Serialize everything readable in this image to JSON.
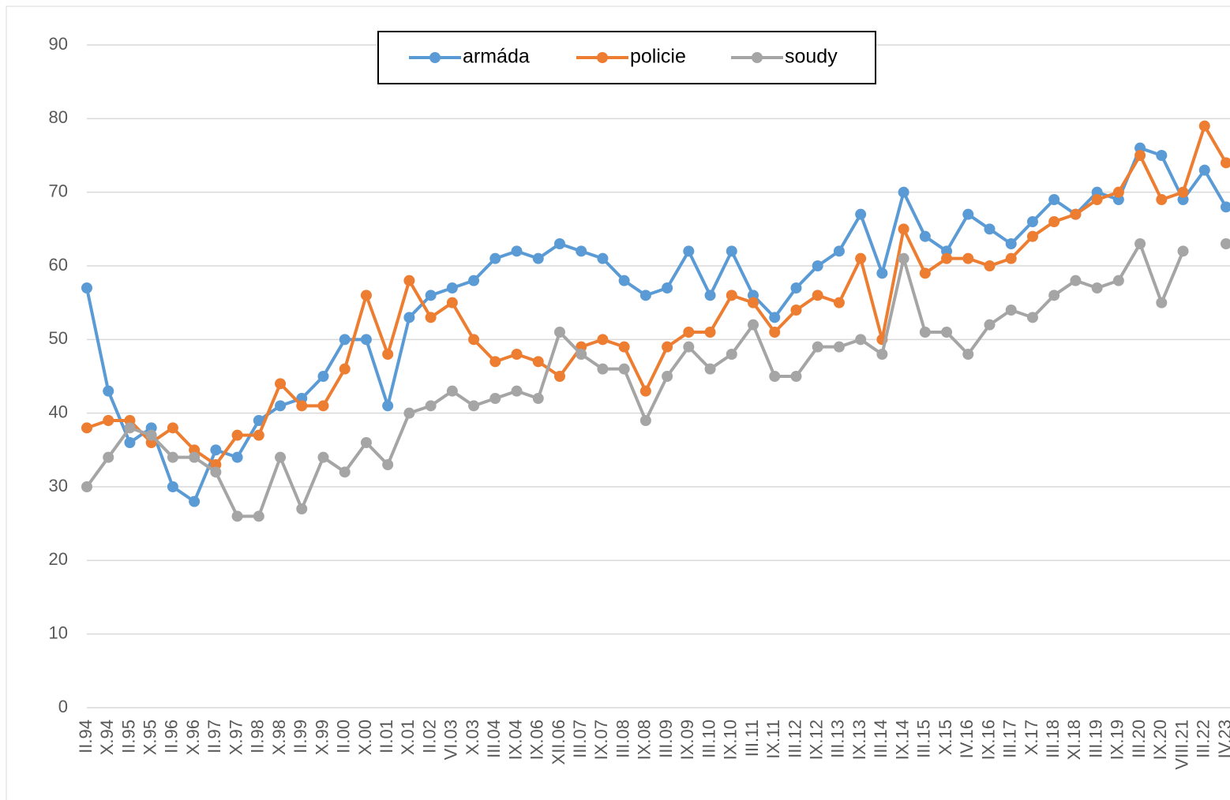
{
  "chart_data": {
    "type": "line",
    "categories": [
      "II.94",
      "X.94",
      "II.95",
      "X.95",
      "II.96",
      "X.96",
      "II.97",
      "X.97",
      "II.98",
      "X.98",
      "II.99",
      "X.99",
      "II.00",
      "X.00",
      "II.01",
      "X.01",
      "II.02",
      "VI.03",
      "X.03",
      "III.04",
      "IX.04",
      "IX.06",
      "XII.06",
      "III.07",
      "IX.07",
      "III.08",
      "IX.08",
      "III.09",
      "IX.09",
      "III.10",
      "IX.10",
      "III.11",
      "IX.11",
      "III.12",
      "IX.12",
      "III.13",
      "IX.13",
      "III.14",
      "IX.14",
      "III.15",
      "X.15",
      "IV.16",
      "IX.16",
      "III.17",
      "X.17",
      "III.18",
      "XI.18",
      "III.19",
      "IX.19",
      "III.20",
      "IX.20",
      "VIII.21",
      "III.22",
      "IV.23"
    ],
    "series": [
      {
        "name": "armáda",
        "color": "#5b9bd5",
        "values": [
          57,
          43,
          36,
          38,
          30,
          28,
          35,
          34,
          39,
          41,
          42,
          45,
          50,
          50,
          41,
          53,
          56,
          57,
          58,
          61,
          62,
          61,
          63,
          62,
          61,
          58,
          56,
          57,
          62,
          56,
          62,
          56,
          53,
          57,
          60,
          62,
          67,
          59,
          70,
          64,
          62,
          67,
          65,
          63,
          66,
          69,
          67,
          70,
          69,
          76,
          75,
          69,
          73,
          68
        ]
      },
      {
        "name": "policie",
        "color": "#ed7d31",
        "values": [
          38,
          39,
          39,
          36,
          38,
          35,
          33,
          37,
          37,
          44,
          41,
          41,
          46,
          56,
          48,
          58,
          53,
          55,
          50,
          47,
          48,
          47,
          45,
          49,
          50,
          49,
          43,
          49,
          51,
          51,
          56,
          55,
          51,
          54,
          56,
          55,
          61,
          50,
          65,
          59,
          61,
          61,
          60,
          61,
          64,
          66,
          67,
          69,
          70,
          75,
          69,
          70,
          79,
          74
        ]
      },
      {
        "name": "soudy",
        "color": "#a5a5a5",
        "values": [
          30,
          34,
          38,
          37,
          34,
          34,
          32,
          26,
          26,
          34,
          27,
          34,
          32,
          36,
          33,
          40,
          41,
          43,
          41,
          42,
          43,
          42,
          51,
          48,
          46,
          46,
          39,
          45,
          49,
          46,
          48,
          52,
          45,
          45,
          49,
          49,
          50,
          48,
          61,
          51,
          51,
          48,
          52,
          54,
          53,
          56,
          58,
          57,
          58,
          63,
          55,
          62,
          null,
          63
        ]
      }
    ],
    "ylim": [
      0,
      90
    ],
    "yticks": [
      0,
      10,
      20,
      30,
      40,
      50,
      60,
      70,
      80,
      90
    ],
    "grid": true,
    "legend": "top"
  }
}
